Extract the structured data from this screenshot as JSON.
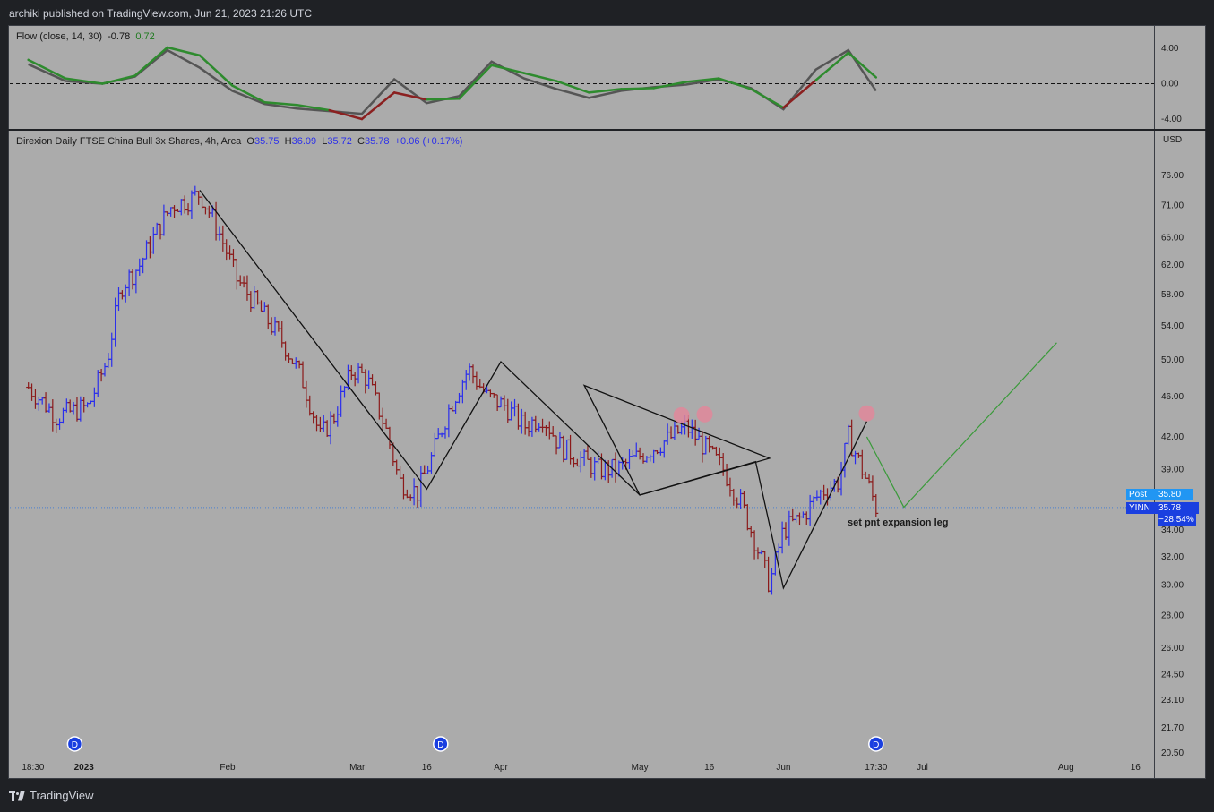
{
  "header": {
    "published": "archiki published on TradingView.com, Jun 21, 2023 21:26 UTC"
  },
  "footer": {
    "brand": "TradingView"
  },
  "indicator": {
    "name": "Flow (close, 14, 30)",
    "value_gray": "-0.78",
    "value_green": "0.72",
    "ticks": [
      "4.00",
      "0.00",
      "-4.00"
    ]
  },
  "symbol": {
    "title": "Direxion Daily FTSE China Bull 3x Shares, 4h, Arca",
    "o_label": "O",
    "o": "35.75",
    "h_label": "H",
    "h": "36.09",
    "l_label": "L",
    "l": "35.72",
    "c_label": "C",
    "c": "35.78",
    "change": "+0.06 (+0.17%)"
  },
  "price_scale": {
    "currency": "USD",
    "post_label": "Post",
    "post_value": "35.80",
    "ticker": "YINN",
    "last_value": "35.78",
    "last_change": "−28.54%"
  },
  "annotation": {
    "text": "set pnt expansion leg"
  },
  "dividend_marker": "D",
  "colors": {
    "up_bar": "#2a2eec",
    "down_bar": "#8b1a1a",
    "flow_green": "#2e8b2e",
    "flow_gray": "#555555",
    "flow_red": "#8b2020",
    "projection": "#3a9a3a",
    "circle": "#e0879a"
  },
  "chart_data": [
    {
      "type": "line",
      "name": "Flow indicator",
      "scale": "linear",
      "ylim": [
        -5,
        5
      ],
      "yticks": [
        4,
        0,
        -4
      ],
      "reference_line": 0,
      "x": [
        "2022-12-20",
        "2022-12-28",
        "2023-01-05",
        "2023-01-12",
        "2023-01-19",
        "2023-01-26",
        "2023-02-02",
        "2023-02-09",
        "2023-02-16",
        "2023-02-23",
        "2023-03-02",
        "2023-03-09",
        "2023-03-16",
        "2023-03-23",
        "2023-03-30",
        "2023-04-06",
        "2023-04-13",
        "2023-04-20",
        "2023-04-27",
        "2023-05-04",
        "2023-05-11",
        "2023-05-18",
        "2023-05-25",
        "2023-06-01",
        "2023-06-08",
        "2023-06-15",
        "2023-06-21"
      ],
      "series": [
        {
          "values": [
            2.2,
            0.3,
            0.0,
            0.8,
            3.8,
            1.8,
            -0.8,
            -2.3,
            -2.8,
            -3.1,
            -3.4,
            0.5,
            -2.2,
            -1.4,
            2.5,
            0.6,
            -0.6,
            -1.6,
            -0.8,
            -0.4,
            -0.1,
            0.5,
            -0.5,
            -2.9,
            1.6,
            3.8,
            -0.8
          ]
        },
        {
          "values": [
            2.7,
            0.6,
            0.0,
            0.9,
            4.1,
            3.2,
            -0.2,
            -2.1,
            -2.4,
            -3.0,
            -4.0,
            -1.0,
            -1.8,
            -1.7,
            2.1,
            1.2,
            0.3,
            -1.0,
            -0.6,
            -0.5,
            0.2,
            0.6,
            -0.6,
            -2.7,
            0.4,
            3.5,
            0.72
          ]
        }
      ]
    },
    {
      "type": "line",
      "name": "YINN price 4h",
      "scale": "log",
      "ylim": [
        20.5,
        81
      ],
      "yticks": [
        76.0,
        71.0,
        66.0,
        62.0,
        58.0,
        54.0,
        50.0,
        46.0,
        42.0,
        39.0,
        34.0,
        32.0,
        30.0,
        28.0,
        26.0,
        24.5,
        23.1,
        21.7,
        20.5
      ],
      "xticks": [
        "18:30",
        "2023",
        "Feb",
        "Mar",
        "16",
        "Apr",
        "May",
        "16",
        "Jun",
        "17:30",
        "Jul",
        "Aug",
        "16"
      ],
      "series": [
        {
          "x": [
            "2022-12-20",
            "2022-12-26",
            "2023-01-02",
            "2023-01-06",
            "2023-01-09",
            "2023-01-13",
            "2023-01-16",
            "2023-01-20",
            "2023-01-24",
            "2023-01-26",
            "2023-01-30",
            "2023-02-03",
            "2023-02-08",
            "2023-02-13",
            "2023-02-17",
            "2023-02-21",
            "2023-02-24",
            "2023-02-28",
            "2023-03-03",
            "2023-03-07",
            "2023-03-10",
            "2023-03-14",
            "2023-03-17",
            "2023-03-21",
            "2023-03-25",
            "2023-03-29",
            "2023-04-02",
            "2023-04-06",
            "2023-04-10",
            "2023-04-14",
            "2023-04-18",
            "2023-04-22",
            "2023-04-26",
            "2023-04-30",
            "2023-05-04",
            "2023-05-08",
            "2023-05-11",
            "2023-05-15",
            "2023-05-19",
            "2023-05-23",
            "2023-05-26",
            "2023-05-29",
            "2023-06-01",
            "2023-06-05",
            "2023-06-09",
            "2023-06-13",
            "2023-06-15",
            "2023-06-19",
            "2023-06-21"
          ],
          "values": [
            47,
            44,
            45,
            50,
            59,
            62,
            66,
            71,
            72,
            73,
            67,
            60,
            56,
            52,
            48,
            42,
            44,
            49,
            48,
            43,
            38,
            37,
            40,
            45,
            49,
            46,
            45,
            43,
            44,
            41,
            40,
            39,
            39,
            40,
            41,
            42,
            43,
            41,
            39,
            36,
            33,
            30,
            34,
            35,
            37,
            38,
            42,
            38,
            35.78
          ]
        }
      ],
      "annotations": [
        {
          "text": "set pnt expansion leg",
          "x": "2023-06-21",
          "y": 34.5
        },
        {
          "shape": "pattern_lines",
          "points": [
            [
              "2023-01-26",
              73.5
            ],
            [
              "2023-03-16",
              37.3
            ],
            [
              "2023-04-01",
              49.8
            ],
            [
              "2023-05-01",
              36.8
            ],
            [
              "2023-05-26",
              39.7
            ],
            [
              "2023-06-01",
              29.8
            ],
            [
              "2023-06-19",
              43.5
            ]
          ]
        },
        {
          "shape": "triangle",
          "points": [
            [
              "2023-04-19",
              47.2
            ],
            [
              "2023-05-29",
              40.0
            ],
            [
              "2023-05-01",
              36.8
            ]
          ]
        },
        {
          "shape": "projection",
          "points": [
            [
              "2023-06-19",
              42.0
            ],
            [
              "2023-06-27",
              35.8
            ],
            [
              "2023-07-30",
              52
            ]
          ]
        },
        {
          "shape": "circle",
          "points": [
            [
              "2023-05-10",
              44.1
            ],
            [
              "2023-05-15",
              44.2
            ],
            [
              "2023-06-19",
              44.3
            ]
          ]
        }
      ]
    }
  ]
}
